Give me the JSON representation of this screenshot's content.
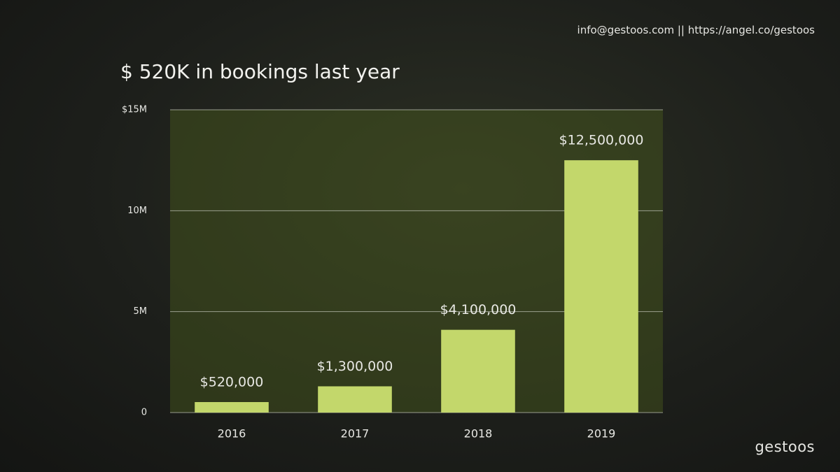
{
  "header": {
    "contact": "info@gestoos.com  ||  https://angel.co/gestoos"
  },
  "logo": "gestoos",
  "chart_data": {
    "type": "bar",
    "title": "$ 520K in bookings last year",
    "categories": [
      "2016",
      "2017",
      "2018",
      "2019"
    ],
    "values": [
      520000,
      1300000,
      4100000,
      12500000
    ],
    "value_labels": [
      "$520,000",
      "$1,300,000",
      "$4,100,000",
      "$12,500,000"
    ],
    "color": "#c3d76b",
    "ylim": [
      0,
      15000000
    ],
    "yticks": [
      0,
      {
        "value": 5000000,
        "label": "5M"
      },
      {
        "value": 10000000,
        "label": "10M"
      },
      {
        "value": 15000000,
        "label": "$15M"
      }
    ],
    "grid": true
  }
}
